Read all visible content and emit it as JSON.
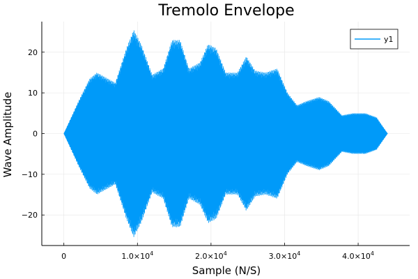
{
  "chart_data": {
    "type": "area",
    "title": "Tremolo Envelope",
    "xlabel": "Sample (N/S)",
    "ylabel": "Wave Amplitude",
    "xlim": [
      -3000,
      47000
    ],
    "ylim": [
      -27.5,
      27.5
    ],
    "x_ticks": [
      {
        "value": 0,
        "mantissa": "0",
        "exponent": ""
      },
      {
        "value": 10000,
        "mantissa": "1.0×10",
        "exponent": "4"
      },
      {
        "value": 20000,
        "mantissa": "2.0×10",
        "exponent": "4"
      },
      {
        "value": 30000,
        "mantissa": "3.0×10",
        "exponent": "4"
      },
      {
        "value": 40000,
        "mantissa": "4.0×10",
        "exponent": "4"
      }
    ],
    "y_ticks": [
      {
        "value": 20,
        "label": "20"
      },
      {
        "value": 10,
        "label": "10"
      },
      {
        "value": 0,
        "label": "0"
      },
      {
        "value": -10,
        "label": "−10"
      },
      {
        "value": -20,
        "label": "−20"
      }
    ],
    "grid": true,
    "legend_position": "top-right",
    "series": [
      {
        "name": "y1",
        "color": "#009af9",
        "x": [
          0,
          2000,
          3500,
          4500,
          5500,
          7000,
          8500,
          9500,
          10500,
          12000,
          13500,
          14700,
          15800,
          17000,
          18500,
          19600,
          20700,
          22000,
          23600,
          24800,
          26000,
          27400,
          29000,
          30400,
          31700,
          33000,
          34700,
          36000,
          37800,
          39300,
          41000,
          42500,
          44000
        ],
        "y_max": [
          0,
          8,
          13.5,
          15,
          14,
          12.5,
          21,
          25.5,
          22,
          14.5,
          16,
          23,
          23,
          16,
          17.5,
          22,
          21,
          15,
          15,
          19,
          15.5,
          15,
          16,
          10,
          7,
          8,
          9,
          8,
          4.5,
          5,
          5,
          4,
          0
        ],
        "y_min": [
          0,
          -8,
          -13.5,
          -15,
          -14,
          -12.5,
          -21,
          -25.5,
          -22,
          -14.5,
          -16,
          -23,
          -23,
          -16,
          -17.5,
          -22,
          -21,
          -15,
          -15,
          -19,
          -15.5,
          -15,
          -16,
          -10,
          -7,
          -8,
          -9,
          -8,
          -4.5,
          -5,
          -5,
          -4,
          0
        ]
      }
    ]
  }
}
